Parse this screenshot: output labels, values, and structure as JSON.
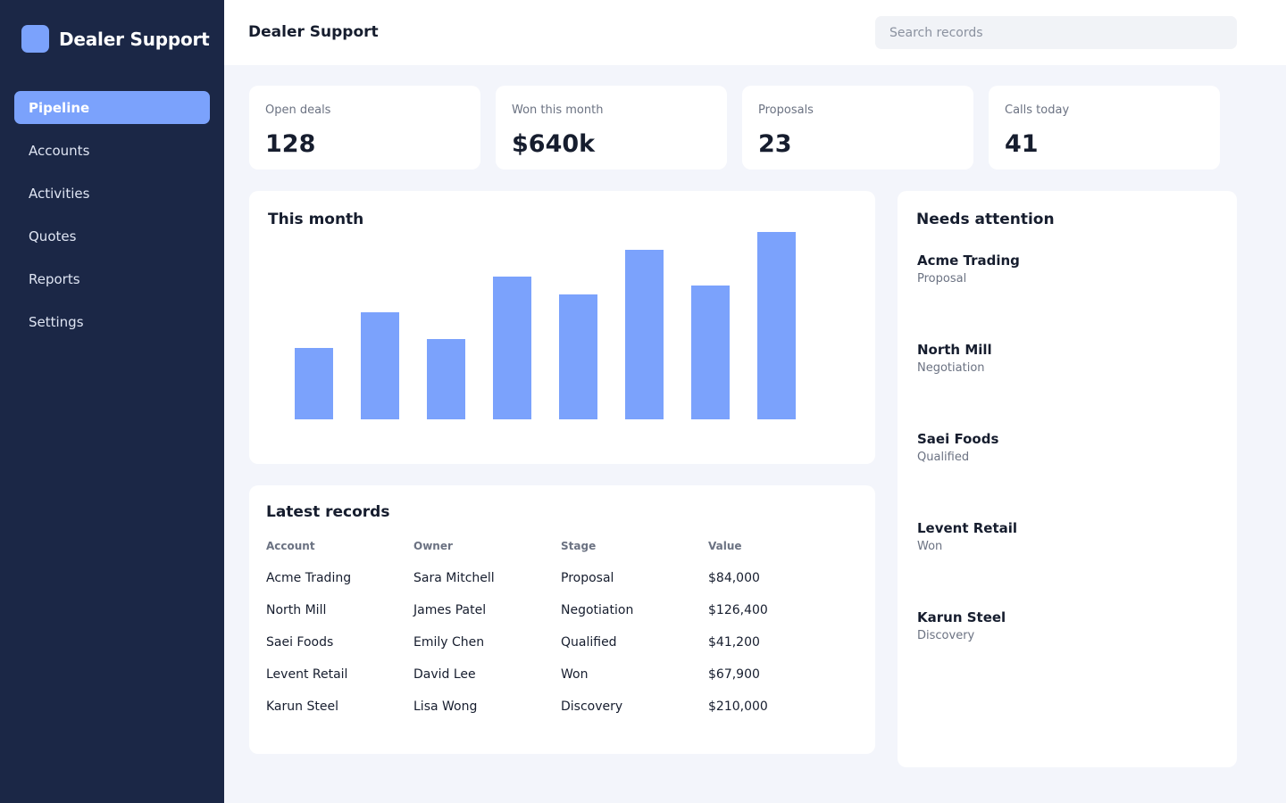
{
  "app": {
    "name": "Dealer Support"
  },
  "sidebar": {
    "items": [
      {
        "label": "Pipeline",
        "active": true
      },
      {
        "label": "Accounts"
      },
      {
        "label": "Activities"
      },
      {
        "label": "Quotes"
      },
      {
        "label": "Reports"
      },
      {
        "label": "Settings"
      }
    ]
  },
  "header": {
    "title": "Dealer Support",
    "search_placeholder": "Search records"
  },
  "stats": [
    {
      "label": "Open deals",
      "value": "128"
    },
    {
      "label": "Won this month",
      "value": "$640k"
    },
    {
      "label": "Proposals",
      "value": "23"
    },
    {
      "label": "Calls today",
      "value": "41"
    }
  ],
  "chart_panel": {
    "title": "This month"
  },
  "chart_data": {
    "type": "bar",
    "values": [
      80,
      120,
      90,
      160,
      140,
      190,
      150,
      210
    ],
    "ylim": [
      0,
      210
    ],
    "grid": false,
    "bar_color": "#7ba2fc"
  },
  "records": {
    "title": "Latest records",
    "columns": [
      "Account",
      "Owner",
      "Stage",
      "Value"
    ],
    "rows": [
      [
        "Acme Trading",
        "Sara Mitchell",
        "Proposal",
        "$84,000"
      ],
      [
        "North Mill",
        "James Patel",
        "Negotiation",
        "$126,400"
      ],
      [
        "Saei Foods",
        "Emily Chen",
        "Qualified",
        "$41,200"
      ],
      [
        "Levent Retail",
        "David Lee",
        "Won",
        "$67,900"
      ],
      [
        "Karun Steel",
        "Lisa Wong",
        "Discovery",
        "$210,000"
      ]
    ]
  },
  "attention": {
    "title": "Needs attention",
    "items": [
      {
        "name": "Acme Trading",
        "stage": "Proposal"
      },
      {
        "name": "North Mill",
        "stage": "Negotiation"
      },
      {
        "name": "Saei Foods",
        "stage": "Qualified"
      },
      {
        "name": "Levent Retail",
        "stage": "Won"
      },
      {
        "name": "Karun Steel",
        "stage": "Discovery"
      }
    ]
  },
  "colors": {
    "sidebar_bg": "#1b2746",
    "accent": "#7ba2fc",
    "page_bg": "#f3f5fb"
  }
}
